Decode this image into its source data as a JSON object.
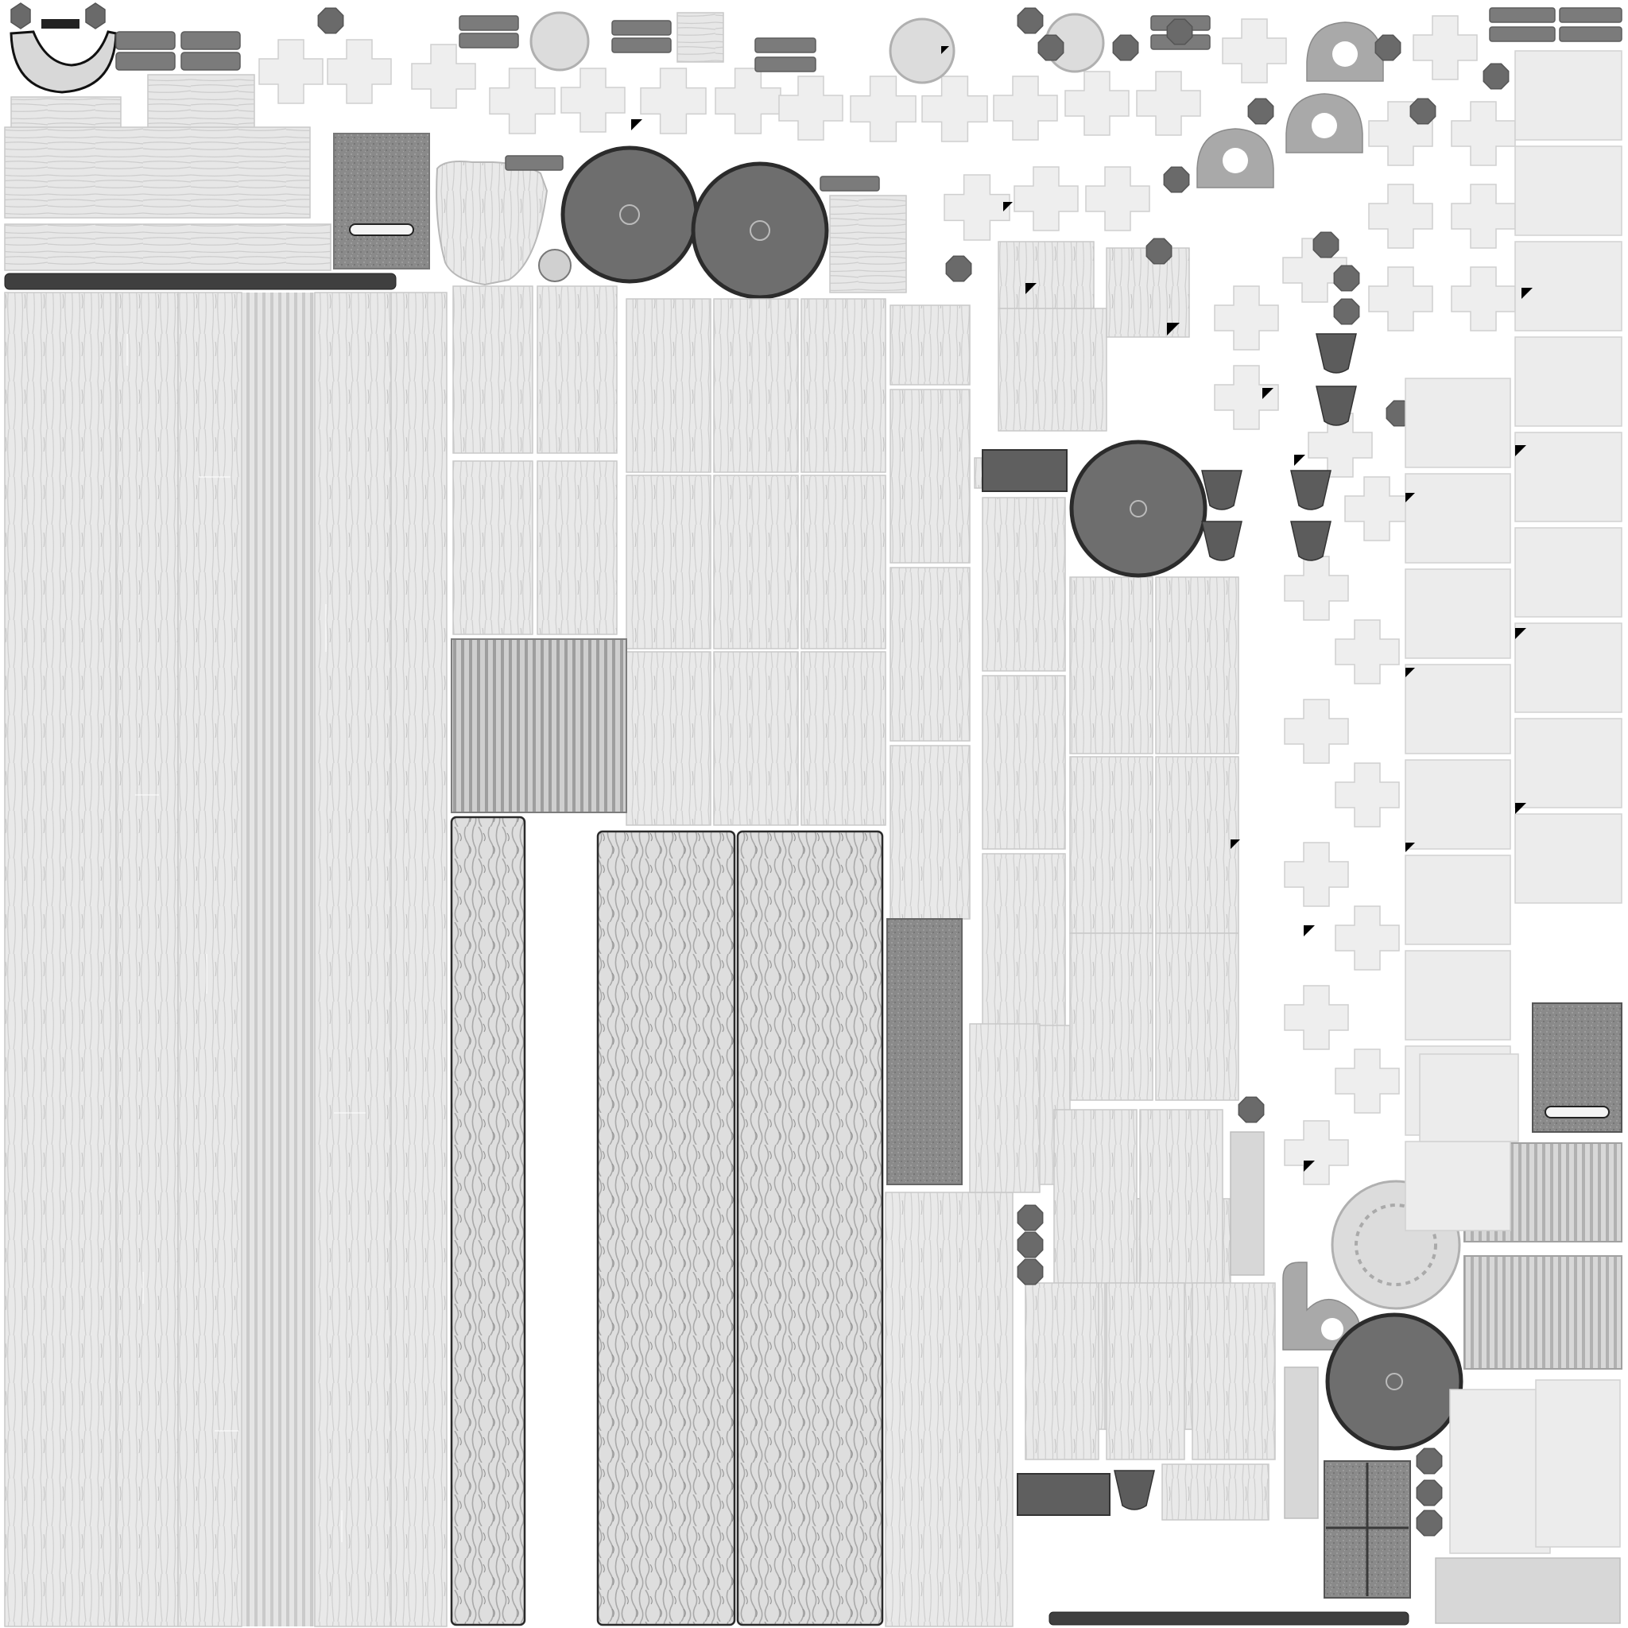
{
  "texture": {
    "kind": "uv-texture-atlas",
    "tone": "grayscale",
    "background_color": "#ffffff",
    "material": "wood-planks",
    "colors": {
      "light_wood": "#e8e8e8",
      "grain": "#c4c4c4",
      "dark_disc": "#6e6e6e",
      "outline": "#2b2b2b",
      "accent_black": "#000000"
    },
    "island_types": [
      "plank",
      "bark-board",
      "round-disc",
      "cross-patch",
      "hex-bolt",
      "shoe-bracket",
      "ring-bracket",
      "dark-rail"
    ]
  }
}
